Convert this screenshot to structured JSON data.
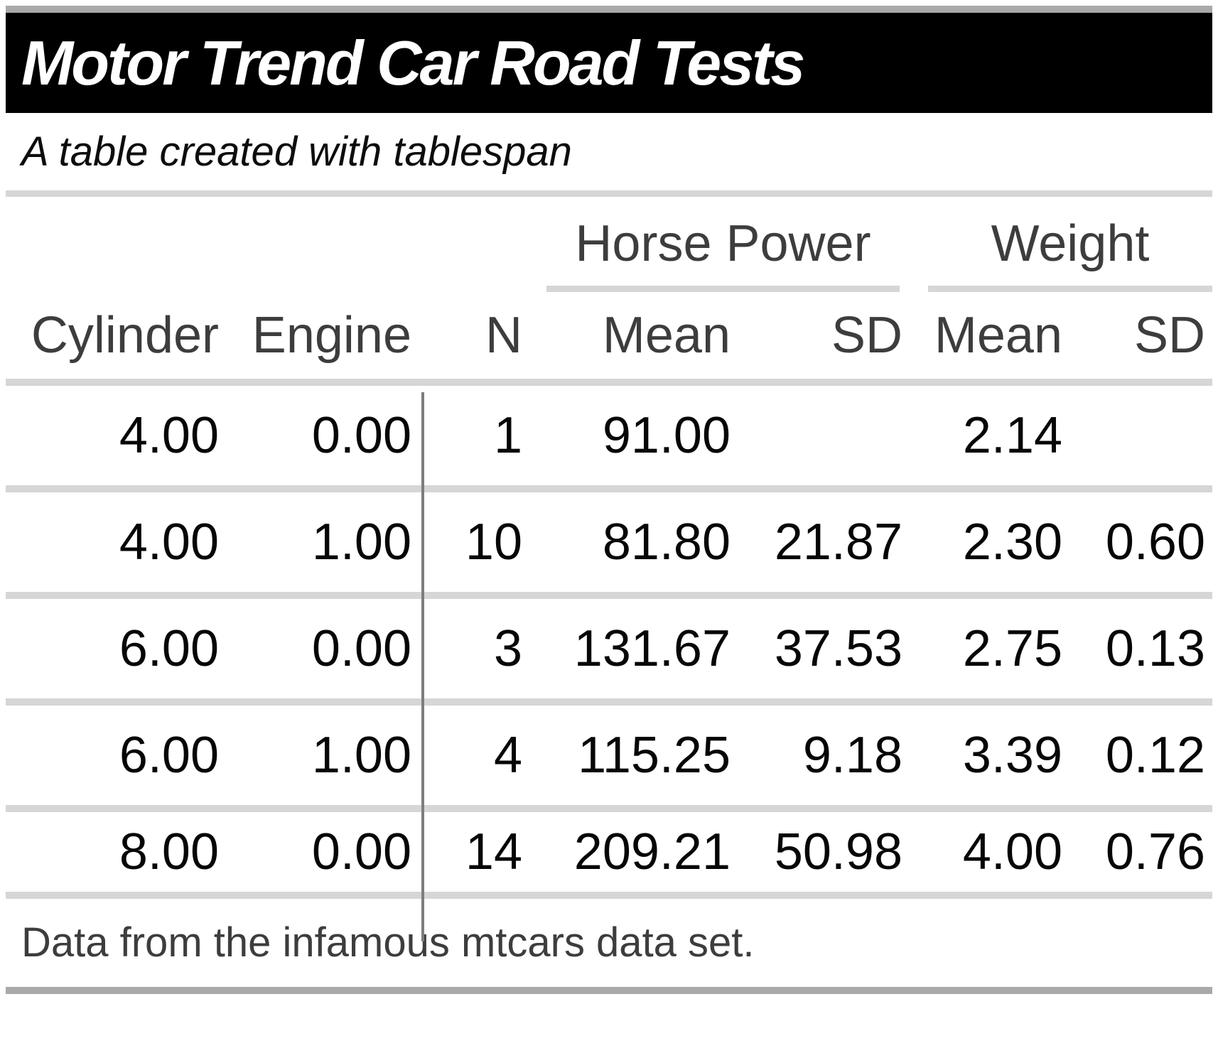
{
  "title": "Motor Trend Car Road Tests",
  "subtitle": "A table created with tablespan",
  "footer_note": "Data from the infamous mtcars data set.",
  "table": {
    "spanners": [
      {
        "label": "Horse Power",
        "covers": [
          "Mean",
          "SD"
        ]
      },
      {
        "label": "Weight",
        "covers": [
          "Mean",
          "SD"
        ]
      }
    ],
    "columns": [
      "Cylinder",
      "Engine",
      "N",
      "Mean",
      "SD",
      "Mean",
      "SD"
    ],
    "rows": [
      [
        "4.00",
        "0.00",
        "1",
        "91.00",
        "",
        "2.14",
        ""
      ],
      [
        "4.00",
        "1.00",
        "10",
        "81.80",
        "21.87",
        "2.30",
        "0.60"
      ],
      [
        "6.00",
        "0.00",
        "3",
        "131.67",
        "37.53",
        "2.75",
        "0.13"
      ],
      [
        "6.00",
        "1.00",
        "4",
        "115.25",
        "9.18",
        "3.39",
        "0.12"
      ],
      [
        "8.00",
        "0.00",
        "14",
        "209.21",
        "50.98",
        "4.00",
        "0.76"
      ]
    ]
  },
  "colors": {
    "banner_background": "#000000",
    "banner_text": "#ffffff",
    "header_text": "#3d3d3d",
    "data_text": "#060606",
    "rule_light": "#d6d6d6",
    "divider_dark": "#7d7d7d",
    "edge_bar": "#a9a9a9"
  }
}
